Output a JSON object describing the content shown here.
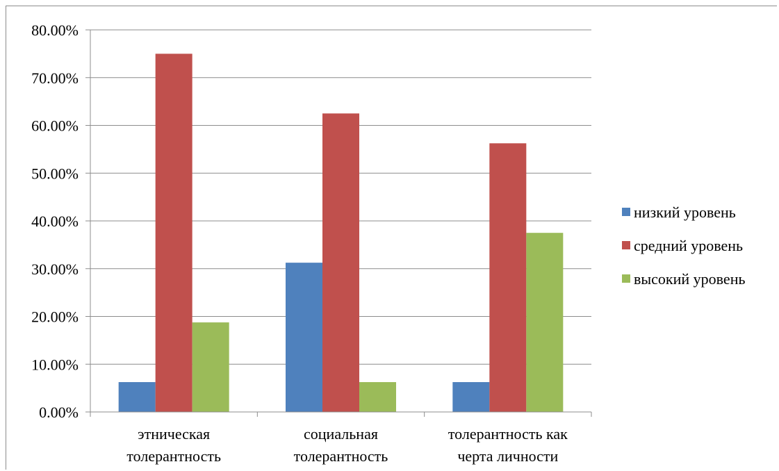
{
  "chart_data": {
    "type": "bar",
    "categories": [
      [
        "этническая",
        "толерантность"
      ],
      [
        "социальная",
        "толерантность"
      ],
      [
        "толерантность как",
        "черта личности"
      ]
    ],
    "series": [
      {
        "name": "низкий уровень",
        "color": "#4f81bd",
        "values": [
          6.25,
          31.25,
          6.25
        ]
      },
      {
        "name": "средний уровень",
        "color": "#c0504d",
        "values": [
          75.0,
          62.5,
          56.25
        ]
      },
      {
        "name": "высокий уровень",
        "color": "#9bbb59",
        "values": [
          18.75,
          6.25,
          37.5
        ]
      }
    ],
    "y_ticks": [
      "0.00%",
      "10.00%",
      "20.00%",
      "30.00%",
      "40.00%",
      "50.00%",
      "60.00%",
      "70.00%",
      "80.00%"
    ],
    "ylim": [
      0,
      80
    ],
    "y_unit": "percent",
    "grid": true,
    "legend_position": "right"
  }
}
